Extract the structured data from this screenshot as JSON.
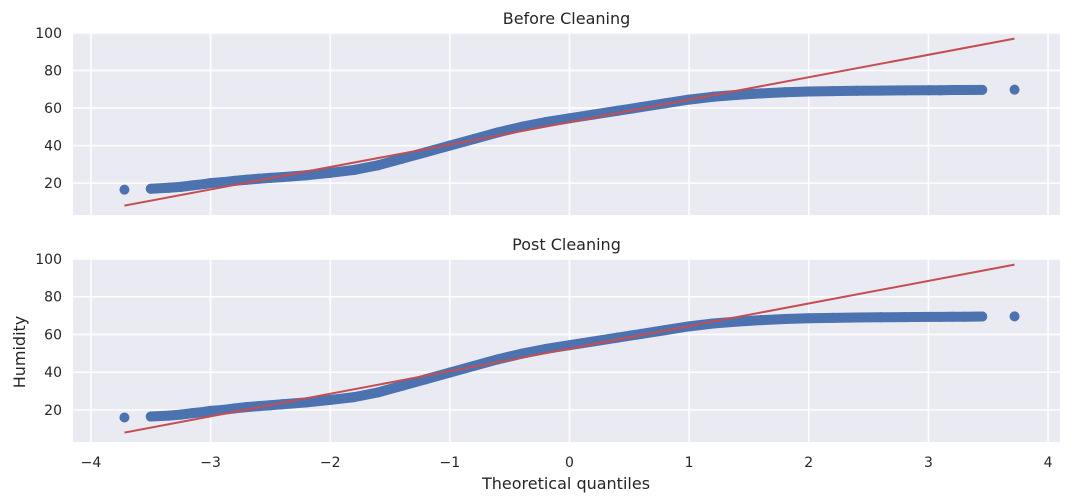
{
  "chart_data": {
    "type": "scatter",
    "xlabel": "Theoretical quantiles",
    "ylabel": "Humidity",
    "xlim": [
      -4.15,
      4.1
    ],
    "x_ticks": [
      -4,
      -3,
      -2,
      -1,
      0,
      1,
      2,
      3,
      4
    ],
    "x_tick_labels": [
      "−4",
      "−3",
      "−2",
      "−1",
      "0",
      "1",
      "2",
      "3",
      "4"
    ],
    "grid": true,
    "colors": {
      "points": "#4c72b0",
      "line": "#c44e52",
      "panel": "#eaeaf2",
      "grid": "#ffffff"
    },
    "panels": [
      {
        "title": "Before Cleaning",
        "ylim": [
          3,
          100
        ],
        "y_ticks": [
          20,
          40,
          60,
          80,
          100
        ],
        "y_tick_labels": [
          "20",
          "40",
          "60",
          "80",
          "100"
        ],
        "fit_line": {
          "x": [
            -3.72,
            3.72
          ],
          "y": [
            8,
            97
          ]
        },
        "points": {
          "x": [
            -3.72,
            -3.5,
            -3.35,
            -3.25,
            -3.15,
            -3.05,
            -3.0,
            -2.9,
            -2.8,
            -2.7,
            -2.6,
            -2.5,
            -2.4,
            -2.2,
            -2.0,
            -1.8,
            -1.6,
            -1.4,
            -1.2,
            -1.0,
            -0.8,
            -0.6,
            -0.4,
            -0.2,
            0.0,
            0.2,
            0.4,
            0.6,
            0.8,
            1.0,
            1.2,
            1.4,
            1.6,
            1.8,
            2.0,
            2.2,
            2.4,
            2.6,
            2.8,
            3.0,
            3.1,
            3.2,
            3.3,
            3.45,
            3.72
          ],
          "y": [
            16.5,
            17.0,
            17.5,
            18.0,
            18.8,
            19.5,
            20.0,
            20.5,
            21.2,
            21.8,
            22.3,
            22.8,
            23.2,
            24.2,
            25.5,
            27.0,
            29.5,
            33.0,
            36.5,
            40.0,
            43.5,
            47.0,
            50.0,
            52.5,
            54.5,
            56.5,
            58.5,
            60.5,
            62.5,
            64.5,
            66.0,
            67.0,
            67.8,
            68.4,
            68.8,
            69.0,
            69.2,
            69.3,
            69.4,
            69.5,
            69.5,
            69.6,
            69.6,
            69.7,
            69.8
          ]
        }
      },
      {
        "title": "Post Cleaning",
        "ylim": [
          3,
          100
        ],
        "y_ticks": [
          20,
          40,
          60,
          80,
          100
        ],
        "y_tick_labels": [
          "20",
          "40",
          "60",
          "80",
          "100"
        ],
        "fit_line": {
          "x": [
            -3.72,
            3.72
          ],
          "y": [
            8,
            97
          ]
        },
        "points": {
          "x": [
            -3.72,
            -3.5,
            -3.35,
            -3.25,
            -3.15,
            -3.05,
            -3.0,
            -2.9,
            -2.8,
            -2.7,
            -2.6,
            -2.5,
            -2.4,
            -2.2,
            -2.0,
            -1.8,
            -1.6,
            -1.4,
            -1.2,
            -1.0,
            -0.8,
            -0.6,
            -0.4,
            -0.2,
            0.0,
            0.2,
            0.4,
            0.6,
            0.8,
            1.0,
            1.2,
            1.4,
            1.6,
            1.8,
            2.0,
            2.2,
            2.4,
            2.6,
            2.8,
            3.0,
            3.1,
            3.2,
            3.3,
            3.45,
            3.72
          ],
          "y": [
            16.0,
            16.5,
            17.0,
            17.5,
            18.3,
            19.0,
            19.5,
            20.0,
            20.8,
            21.5,
            22.0,
            22.5,
            23.0,
            24.0,
            25.3,
            26.8,
            29.3,
            32.8,
            36.3,
            39.8,
            43.3,
            46.8,
            49.8,
            52.3,
            54.3,
            56.3,
            58.3,
            60.3,
            62.3,
            64.3,
            65.8,
            66.8,
            67.6,
            68.2,
            68.6,
            68.8,
            69.0,
            69.1,
            69.2,
            69.3,
            69.3,
            69.4,
            69.4,
            69.5,
            69.6
          ]
        }
      }
    ]
  }
}
